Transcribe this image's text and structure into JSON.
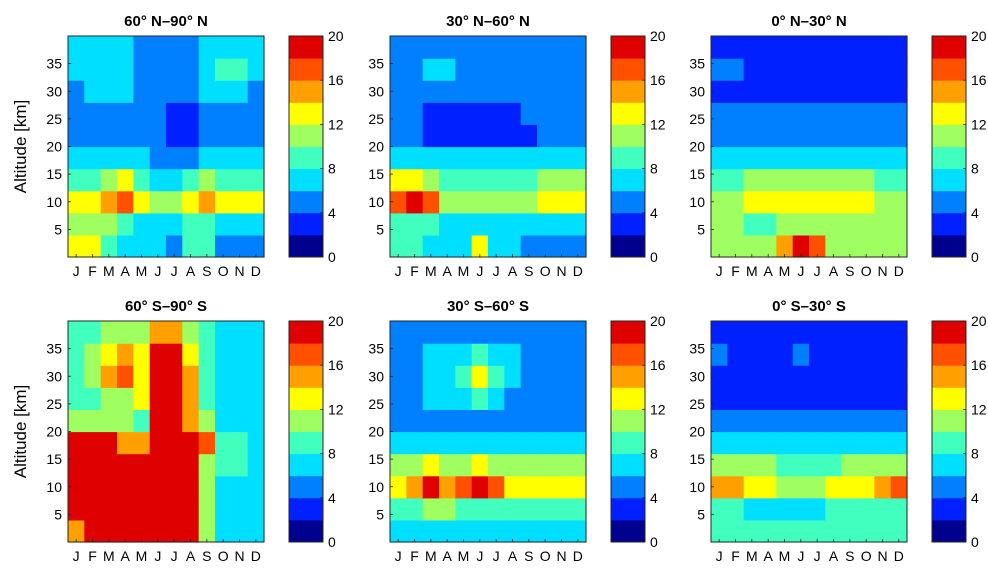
{
  "chart_data": [
    {
      "type": "heatmap",
      "title": "60° N–90° N",
      "ylabel": "Altitude [km]",
      "x_tick_labels": [
        "J",
        "F",
        "M",
        "A",
        "M",
        "J",
        "J",
        "A",
        "S",
        "O",
        "N",
        "D"
      ],
      "y_ticks": [
        5,
        10,
        15,
        20,
        25,
        30,
        35
      ],
      "ylim": [
        0,
        40
      ],
      "colorbar_ticks": [
        0,
        4,
        8,
        12,
        16,
        20
      ],
      "colorbar_range": [
        0,
        20
      ],
      "cells": [
        [
          12,
          12,
          8,
          6,
          6,
          6,
          4,
          8,
          8,
          4,
          4,
          4
        ],
        [
          10,
          10,
          10,
          8,
          6,
          6,
          6,
          8,
          8,
          6,
          6,
          6
        ],
        [
          12,
          12,
          14,
          16,
          12,
          10,
          10,
          12,
          14,
          12,
          12,
          12
        ],
        [
          8,
          8,
          10,
          12,
          8,
          6,
          6,
          8,
          10,
          8,
          8,
          8
        ],
        [
          6,
          6,
          6,
          6,
          6,
          4,
          4,
          4,
          6,
          6,
          6,
          6
        ],
        [
          4,
          4,
          4,
          4,
          4,
          4,
          2,
          2,
          4,
          4,
          4,
          4
        ],
        [
          4,
          4,
          4,
          4,
          4,
          4,
          2,
          2,
          4,
          4,
          4,
          4
        ],
        [
          4,
          6,
          6,
          6,
          4,
          4,
          4,
          4,
          6,
          6,
          6,
          4
        ],
        [
          6,
          6,
          6,
          6,
          4,
          4,
          4,
          4,
          6,
          8,
          8,
          6
        ],
        [
          6,
          6,
          6,
          6,
          4,
          4,
          4,
          4,
          6,
          6,
          6,
          6
        ]
      ]
    },
    {
      "type": "heatmap",
      "title": "30° N–60° N",
      "ylabel": "",
      "x_tick_labels": [
        "J",
        "F",
        "M",
        "A",
        "M",
        "J",
        "J",
        "A",
        "S",
        "O",
        "N",
        "D"
      ],
      "y_ticks": [
        5,
        10,
        15,
        20,
        25,
        30,
        35
      ],
      "ylim": [
        0,
        40
      ],
      "colorbar_ticks": [
        0,
        4,
        8,
        12,
        16,
        20
      ],
      "colorbar_range": [
        0,
        20
      ],
      "cells": [
        [
          8,
          8,
          6,
          6,
          6,
          12,
          6,
          6,
          4,
          4,
          4,
          4
        ],
        [
          8,
          8,
          8,
          6,
          6,
          6,
          6,
          6,
          6,
          6,
          6,
          6
        ],
        [
          16,
          18,
          16,
          10,
          10,
          10,
          10,
          10,
          10,
          12,
          12,
          12
        ],
        [
          12,
          12,
          10,
          8,
          8,
          8,
          8,
          8,
          8,
          10,
          10,
          10
        ],
        [
          6,
          6,
          6,
          6,
          6,
          6,
          6,
          6,
          6,
          6,
          6,
          6
        ],
        [
          4,
          4,
          2,
          2,
          2,
          2,
          2,
          2,
          2,
          4,
          4,
          4
        ],
        [
          4,
          4,
          2,
          2,
          2,
          2,
          2,
          2,
          4,
          4,
          4,
          4
        ],
        [
          4,
          4,
          4,
          4,
          4,
          4,
          4,
          4,
          4,
          4,
          4,
          4
        ],
        [
          4,
          4,
          6,
          6,
          4,
          4,
          4,
          4,
          4,
          4,
          4,
          4
        ],
        [
          4,
          4,
          4,
          4,
          4,
          4,
          4,
          4,
          4,
          4,
          4,
          4
        ]
      ]
    },
    {
      "type": "heatmap",
      "title": "0° N–30° N",
      "ylabel": "",
      "x_tick_labels": [
        "J",
        "F",
        "M",
        "A",
        "M",
        "J",
        "J",
        "A",
        "S",
        "O",
        "N",
        "D"
      ],
      "y_ticks": [
        5,
        10,
        15,
        20,
        25,
        30,
        35
      ],
      "ylim": [
        0,
        40
      ],
      "colorbar_ticks": [
        0,
        4,
        8,
        12,
        16,
        20
      ],
      "colorbar_range": [
        0,
        20
      ],
      "cells": [
        [
          10,
          10,
          10,
          10,
          14,
          20,
          16,
          10,
          10,
          10,
          10,
          10
        ],
        [
          10,
          10,
          8,
          8,
          10,
          10,
          10,
          10,
          10,
          10,
          10,
          10
        ],
        [
          10,
          10,
          12,
          12,
          12,
          12,
          12,
          12,
          12,
          12,
          10,
          10
        ],
        [
          8,
          8,
          10,
          10,
          10,
          10,
          10,
          10,
          10,
          10,
          8,
          8
        ],
        [
          6,
          6,
          6,
          6,
          6,
          6,
          6,
          6,
          6,
          6,
          6,
          6
        ],
        [
          4,
          4,
          4,
          4,
          4,
          4,
          4,
          4,
          4,
          4,
          4,
          4
        ],
        [
          4,
          4,
          4,
          4,
          4,
          4,
          4,
          4,
          4,
          4,
          4,
          4
        ],
        [
          2,
          2,
          2,
          2,
          2,
          2,
          2,
          2,
          2,
          2,
          2,
          2
        ],
        [
          4,
          4,
          2,
          2,
          2,
          2,
          2,
          2,
          2,
          2,
          2,
          2
        ],
        [
          2,
          2,
          2,
          2,
          2,
          2,
          2,
          2,
          2,
          2,
          2,
          2
        ]
      ]
    },
    {
      "type": "heatmap",
      "title": "60° S–90° S",
      "ylabel": "Altitude [km]",
      "x_tick_labels": [
        "J",
        "F",
        "M",
        "A",
        "M",
        "J",
        "J",
        "A",
        "S",
        "O",
        "N",
        "D"
      ],
      "y_ticks": [
        5,
        10,
        15,
        20,
        25,
        30,
        35
      ],
      "ylim": [
        0,
        40
      ],
      "colorbar_ticks": [
        0,
        4,
        8,
        12,
        16,
        20
      ],
      "colorbar_range": [
        0,
        20
      ],
      "cells": [
        [
          14,
          20,
          20,
          20,
          20,
          20,
          20,
          20,
          10,
          6,
          6,
          6
        ],
        [
          20,
          20,
          20,
          20,
          20,
          20,
          20,
          18,
          10,
          6,
          6,
          6
        ],
        [
          20,
          20,
          20,
          20,
          20,
          20,
          20,
          20,
          10,
          6,
          6,
          6
        ],
        [
          20,
          20,
          20,
          20,
          20,
          20,
          20,
          20,
          10,
          8,
          8,
          6
        ],
        [
          20,
          20,
          20,
          14,
          14,
          20,
          20,
          20,
          16,
          8,
          8,
          6
        ],
        [
          10,
          10,
          10,
          10,
          8,
          20,
          20,
          14,
          10,
          6,
          6,
          6
        ],
        [
          8,
          8,
          10,
          10,
          12,
          20,
          20,
          14,
          8,
          6,
          6,
          6
        ],
        [
          8,
          10,
          14,
          16,
          12,
          20,
          20,
          14,
          8,
          6,
          6,
          6
        ],
        [
          8,
          10,
          12,
          14,
          12,
          20,
          20,
          12,
          8,
          6,
          6,
          6
        ],
        [
          8,
          8,
          10,
          10,
          10,
          14,
          14,
          10,
          8,
          6,
          6,
          6
        ]
      ]
    },
    {
      "type": "heatmap",
      "title": "30° S–60° S",
      "ylabel": "",
      "x_tick_labels": [
        "J",
        "F",
        "M",
        "A",
        "M",
        "J",
        "J",
        "A",
        "S",
        "O",
        "N",
        "D"
      ],
      "y_ticks": [
        5,
        10,
        15,
        20,
        25,
        30,
        35
      ],
      "ylim": [
        0,
        40
      ],
      "colorbar_ticks": [
        0,
        4,
        8,
        12,
        16,
        20
      ],
      "colorbar_range": [
        0,
        20
      ],
      "cells": [
        [
          6,
          6,
          6,
          6,
          6,
          6,
          6,
          6,
          6,
          6,
          6,
          6
        ],
        [
          8,
          8,
          10,
          10,
          8,
          8,
          8,
          8,
          8,
          8,
          8,
          8
        ],
        [
          12,
          14,
          18,
          14,
          16,
          18,
          16,
          12,
          12,
          12,
          12,
          12
        ],
        [
          10,
          10,
          12,
          10,
          10,
          12,
          10,
          10,
          10,
          10,
          10,
          10
        ],
        [
          6,
          6,
          6,
          6,
          6,
          6,
          6,
          6,
          6,
          6,
          6,
          6
        ],
        [
          4,
          4,
          4,
          4,
          4,
          4,
          4,
          4,
          4,
          4,
          4,
          4
        ],
        [
          4,
          4,
          6,
          6,
          6,
          8,
          6,
          4,
          4,
          4,
          4,
          4
        ],
        [
          4,
          4,
          6,
          6,
          8,
          12,
          8,
          6,
          4,
          4,
          4,
          4
        ],
        [
          4,
          4,
          6,
          6,
          6,
          8,
          6,
          6,
          4,
          4,
          4,
          4
        ],
        [
          4,
          4,
          4,
          4,
          4,
          4,
          4,
          4,
          4,
          4,
          4,
          4
        ]
      ]
    },
    {
      "type": "heatmap",
      "title": "0° S–30° S",
      "ylabel": "",
      "x_tick_labels": [
        "J",
        "F",
        "M",
        "A",
        "M",
        "J",
        "J",
        "A",
        "S",
        "O",
        "N",
        "D"
      ],
      "y_ticks": [
        5,
        10,
        15,
        20,
        25,
        30,
        35
      ],
      "ylim": [
        0,
        40
      ],
      "colorbar_ticks": [
        0,
        4,
        8,
        12,
        16,
        20
      ],
      "colorbar_range": [
        0,
        20
      ],
      "cells": [
        [
          8,
          8,
          8,
          8,
          8,
          8,
          8,
          8,
          8,
          8,
          8,
          8
        ],
        [
          8,
          8,
          6,
          6,
          6,
          6,
          6,
          8,
          8,
          8,
          8,
          8
        ],
        [
          14,
          14,
          12,
          12,
          10,
          10,
          10,
          12,
          12,
          12,
          14,
          16
        ],
        [
          10,
          10,
          10,
          10,
          8,
          8,
          8,
          8,
          10,
          10,
          10,
          10
        ],
        [
          6,
          6,
          6,
          6,
          6,
          6,
          6,
          6,
          6,
          6,
          6,
          6
        ],
        [
          4,
          4,
          4,
          4,
          4,
          4,
          4,
          4,
          4,
          4,
          4,
          4
        ],
        [
          2,
          2,
          2,
          2,
          2,
          2,
          2,
          2,
          2,
          2,
          2,
          2
        ],
        [
          2,
          2,
          2,
          2,
          2,
          2,
          2,
          2,
          2,
          2,
          2,
          2
        ],
        [
          4,
          2,
          2,
          2,
          2,
          4,
          2,
          2,
          2,
          2,
          2,
          2
        ],
        [
          2,
          2,
          2,
          2,
          2,
          2,
          2,
          2,
          2,
          2,
          2,
          2
        ]
      ]
    }
  ],
  "colormap": [
    "#00008f",
    "#0020ff",
    "#0080ff",
    "#00dfff",
    "#40ffbf",
    "#9fff60",
    "#ffff00",
    "#ffa000",
    "#ff5000",
    "#df0000"
  ]
}
